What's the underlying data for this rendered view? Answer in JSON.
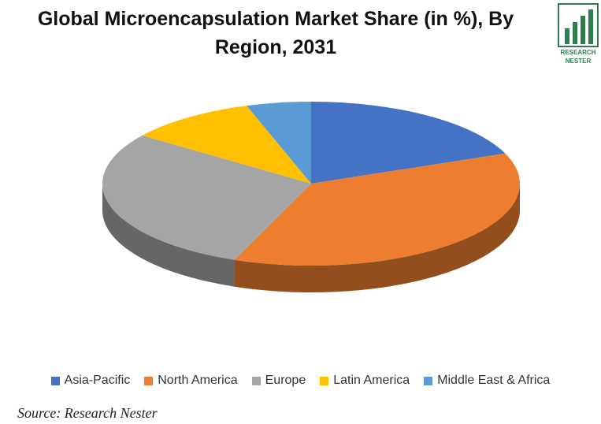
{
  "chart_data": {
    "type": "pie3d",
    "title": "Global Microencapsulation Market Share (in %),  By Region, 2031",
    "categories": [
      "Asia-Pacific",
      "North America",
      "Europe",
      "Latin America",
      "Middle East & Africa"
    ],
    "values": [
      19,
      37,
      29,
      10,
      5
    ],
    "colors": [
      "#4472c4",
      "#ed7d31",
      "#a5a5a5",
      "#ffc000",
      "#5b9bd5"
    ],
    "legend": "bottom"
  },
  "logo": {
    "line1": "RESEARCH",
    "line2": "NESTER"
  },
  "source": "Source: Research Nester"
}
